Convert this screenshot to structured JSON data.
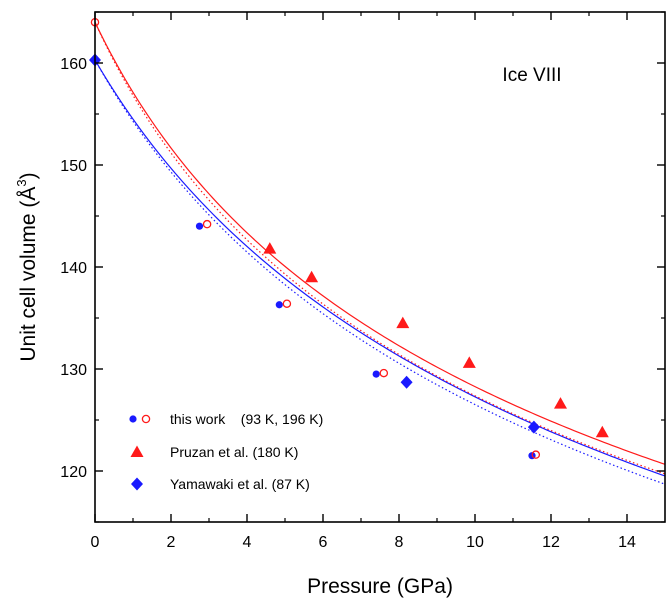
{
  "chart_data": {
    "type": "scatter",
    "annotation": "Ice VIII",
    "xlabel": "Pressure (GPa)",
    "ylabel_main": "Unit cell volume (Å",
    "ylabel_sup": "3",
    "ylabel_close": ")",
    "xlim": [
      0,
      15
    ],
    "ylim": [
      115,
      165
    ],
    "x_ticks": [
      0,
      2,
      4,
      6,
      8,
      10,
      12,
      14
    ],
    "y_ticks": [
      120,
      130,
      140,
      150,
      160
    ],
    "legend_position": "lower-left",
    "series": [
      {
        "name": "this work",
        "legend_label": "this work    (93 K, 196 K)",
        "marker": "circle-filled",
        "color": "#1a1aff",
        "points": [
          [
            0.0,
            160.3
          ],
          [
            2.75,
            144.0
          ],
          [
            4.85,
            136.3
          ],
          [
            7.4,
            129.5
          ],
          [
            11.5,
            121.5
          ]
        ]
      },
      {
        "name": "this work (196 K)",
        "marker": "circle-open",
        "color": "#ff1a1a",
        "points": [
          [
            0.0,
            164.0
          ],
          [
            2.95,
            144.2
          ],
          [
            5.05,
            136.4
          ],
          [
            7.6,
            129.6
          ],
          [
            11.6,
            121.6
          ]
        ]
      },
      {
        "name": "Pruzan et al.",
        "legend_label": "Pruzan et al. (180 K)",
        "marker": "triangle",
        "color": "#ff1a1a",
        "points": [
          [
            4.6,
            141.8
          ],
          [
            5.7,
            139.0
          ],
          [
            8.1,
            134.5
          ],
          [
            9.85,
            130.6
          ],
          [
            12.25,
            126.6
          ],
          [
            13.35,
            123.8
          ]
        ]
      },
      {
        "name": "Yamawaki et al.",
        "legend_label": "Yamawaki et al. (87 K)",
        "marker": "diamond",
        "color": "#1a1aff",
        "points": [
          [
            0.0,
            160.3
          ],
          [
            8.2,
            128.7
          ],
          [
            11.55,
            124.3
          ]
        ]
      }
    ],
    "fits": [
      {
        "color": "#1a1aff",
        "style": "solid",
        "V0": 160.3,
        "K0": 25.0,
        "Kp": 4.4
      },
      {
        "color": "#1a1aff",
        "style": "dotted",
        "V0": 160.3,
        "K0": 24.0,
        "Kp": 4.4
      },
      {
        "color": "#ff1a1a",
        "style": "solid",
        "V0": 164.0,
        "K0": 21.0,
        "Kp": 4.9
      },
      {
        "color": "#ff1a1a",
        "style": "dotted",
        "V0": 164.0,
        "K0": 20.0,
        "Kp": 4.9
      }
    ]
  }
}
